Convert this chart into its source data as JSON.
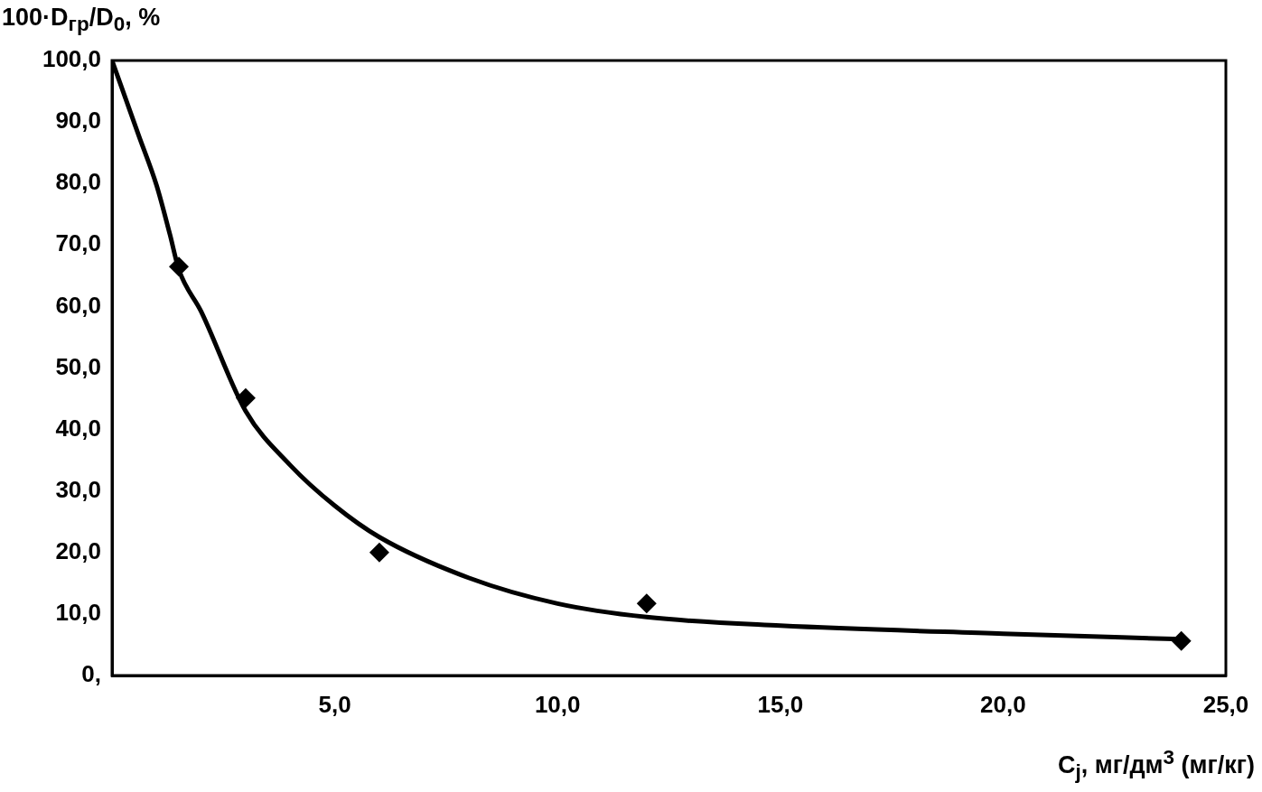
{
  "chart_data": {
    "type": "scatter",
    "xlabel": "C$_{j}$, мг/дм$^{3}$ (мг/кг)",
    "ylabel": "100·D$_{гр}$/D$_{0}$, %",
    "xlim": [
      0,
      25
    ],
    "ylim": [
      0,
      100
    ],
    "xticks": [
      {
        "value": 0,
        "label": null
      },
      {
        "value": 5,
        "label": "5,0"
      },
      {
        "value": 10,
        "label": "10,0"
      },
      {
        "value": 15,
        "label": "15,0"
      },
      {
        "value": 20,
        "label": "20,0"
      },
      {
        "value": 25,
        "label": "25,0"
      }
    ],
    "yticks": [
      {
        "value": 0,
        "label": "0,"
      },
      {
        "value": 10,
        "label": "10,0"
      },
      {
        "value": 20,
        "label": "20,0"
      },
      {
        "value": 30,
        "label": "30,0"
      },
      {
        "value": 40,
        "label": "40,0"
      },
      {
        "value": 50,
        "label": "50,0"
      },
      {
        "value": 60,
        "label": "60,0"
      },
      {
        "value": 70,
        "label": "70,0"
      },
      {
        "value": 80,
        "label": "80,0"
      },
      {
        "value": 90,
        "label": "90,0"
      },
      {
        "value": 100,
        "label": "100,0"
      }
    ],
    "grid": false,
    "legend": false,
    "series": [
      {
        "type": "line",
        "color": "#000000",
        "marker": "none",
        "line_style": "solid",
        "x": [
          0,
          0.6,
          1.0,
          1.3,
          1.5,
          2,
          3,
          4,
          5,
          6,
          8,
          10,
          12,
          15,
          20,
          24
        ],
        "values": [
          100,
          87.8,
          79.7,
          71.7,
          66,
          59.2,
          43,
          34.2,
          27.6,
          22.5,
          15.9,
          11.7,
          9.5,
          8.1,
          6.8,
          5.9
        ]
      },
      {
        "type": "scatter",
        "color": "#000000",
        "marker": "diamond",
        "x": [
          1.5,
          3,
          6,
          12,
          24
        ],
        "values": [
          66.5,
          45.1,
          20.0,
          11.7,
          5.6
        ]
      }
    ]
  }
}
